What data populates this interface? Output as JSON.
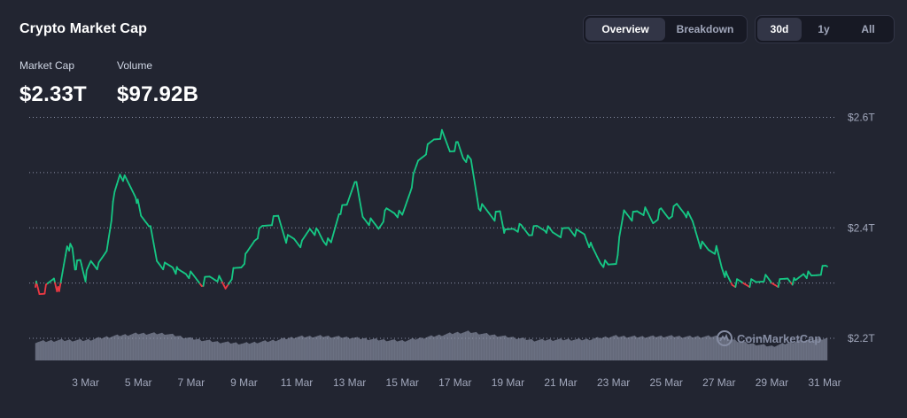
{
  "header": {
    "title": "Crypto Market Cap",
    "view_tabs": [
      {
        "label": "Overview",
        "active": true
      },
      {
        "label": "Breakdown",
        "active": false
      }
    ],
    "range_tabs": [
      {
        "label": "30d",
        "active": true
      },
      {
        "label": "1y",
        "active": false
      },
      {
        "label": "All",
        "active": false
      }
    ]
  },
  "stats": {
    "market_cap": {
      "label": "Market Cap",
      "value": "$2.33T"
    },
    "volume": {
      "label": "Volume",
      "value": "$97.92B"
    }
  },
  "watermark": {
    "text": "CoinMarketCap",
    "icon": "coinmarketcap-logo-icon"
  },
  "colors": {
    "background": "#222531",
    "line_up": "#16c784",
    "line_down": "#ea3943",
    "volume_bars": "#9399ad",
    "grid": "#8a90a6"
  },
  "chart_data": {
    "type": "line",
    "baseline": 2.3,
    "ylim": [
      2.16,
      2.62
    ],
    "y_ticks": [
      {
        "value": 2.6,
        "label": "$2.6T"
      },
      {
        "value": 2.4,
        "label": "$2.4T"
      },
      {
        "value": 2.2,
        "label": "$2.2T"
      }
    ],
    "y_grid_values": [
      2.6,
      2.5,
      2.4,
      2.3,
      2.2
    ],
    "x_ticks": [
      "3 Mar",
      "5 Mar",
      "7 Mar",
      "9 Mar",
      "11 Mar",
      "13 Mar",
      "15 Mar",
      "17 Mar",
      "19 Mar",
      "21 Mar",
      "23 Mar",
      "25 Mar",
      "27 Mar",
      "29 Mar",
      "31 Mar"
    ],
    "x_tick_days": [
      2,
      4,
      6,
      8,
      10,
      12,
      14,
      16,
      18,
      20,
      22,
      24,
      26,
      28,
      30
    ],
    "x_range_days": [
      0.1,
      30.1
    ],
    "grid": true,
    "legend": "none",
    "series": [
      {
        "x_days": [
          0.1,
          0.25,
          0.5,
          0.8,
          1.0,
          1.3,
          1.5,
          1.6,
          1.8,
          2.0,
          2.2,
          2.5,
          2.8,
          3.1,
          3.3,
          3.6,
          3.9,
          4.1,
          4.4,
          4.7,
          5.0,
          5.3,
          5.5,
          5.8,
          6.1,
          6.4,
          6.7,
          7.0,
          7.3,
          7.6,
          7.9,
          8.1,
          8.4,
          8.7,
          9.0,
          9.3,
          9.6,
          9.9,
          10.2,
          10.5,
          10.8,
          11.0,
          11.3,
          11.6,
          11.9,
          12.2,
          12.5,
          12.8,
          13.1,
          13.4,
          13.7,
          14.0,
          14.3,
          14.6,
          14.9,
          15.2,
          15.5,
          15.8,
          16.1,
          16.3,
          16.6,
          16.9,
          17.2,
          17.5,
          17.7,
          17.9,
          18.2,
          18.5,
          18.8,
          19.1,
          19.4,
          19.7,
          20.0,
          20.3,
          20.6,
          20.9,
          21.2,
          21.5,
          21.8,
          22.1,
          22.4,
          22.7,
          22.9,
          23.2,
          23.5,
          23.8,
          24.1,
          24.4,
          24.7,
          25.0,
          25.3,
          25.6,
          25.9,
          26.1,
          26.3,
          26.5,
          26.8,
          27.1,
          27.4,
          27.7,
          28.0,
          28.3,
          28.6,
          28.9,
          29.2,
          29.5,
          29.8,
          30.1
        ],
        "values": [
          2.3,
          2.28,
          2.29,
          2.31,
          2.28,
          2.37,
          2.36,
          2.33,
          2.34,
          2.31,
          2.34,
          2.33,
          2.36,
          2.46,
          2.5,
          2.48,
          2.46,
          2.42,
          2.41,
          2.34,
          2.33,
          2.33,
          2.32,
          2.32,
          2.31,
          2.3,
          2.31,
          2.31,
          2.29,
          2.32,
          2.33,
          2.35,
          2.38,
          2.4,
          2.41,
          2.42,
          2.38,
          2.38,
          2.37,
          2.4,
          2.39,
          2.38,
          2.37,
          2.43,
          2.44,
          2.49,
          2.42,
          2.41,
          2.4,
          2.43,
          2.43,
          2.42,
          2.47,
          2.52,
          2.54,
          2.56,
          2.57,
          2.54,
          2.55,
          2.53,
          2.52,
          2.44,
          2.43,
          2.42,
          2.43,
          2.39,
          2.4,
          2.4,
          2.39,
          2.4,
          2.4,
          2.39,
          2.39,
          2.4,
          2.39,
          2.39,
          2.36,
          2.34,
          2.33,
          2.34,
          2.43,
          2.42,
          2.43,
          2.43,
          2.41,
          2.43,
          2.42,
          2.44,
          2.43,
          2.41,
          2.37,
          2.36,
          2.36,
          2.33,
          2.31,
          2.3,
          2.3,
          2.3,
          2.3,
          2.31,
          2.3,
          2.3,
          2.31,
          2.3,
          2.32,
          2.31,
          2.32,
          2.33
        ]
      }
    ],
    "volume": {
      "x_days": [
        0.1,
        1.0,
        2.0,
        3.0,
        4.0,
        5.0,
        6.0,
        7.0,
        8.0,
        9.0,
        10.0,
        11.0,
        12.0,
        13.0,
        14.0,
        15.0,
        16.0,
        16.5,
        17.0,
        18.0,
        19.0,
        20.0,
        21.0,
        22.0,
        23.0,
        24.0,
        25.0,
        26.0,
        27.0,
        28.0,
        29.0,
        30.1
      ],
      "values": [
        0.55,
        0.6,
        0.6,
        0.72,
        0.8,
        0.8,
        0.65,
        0.55,
        0.5,
        0.58,
        0.7,
        0.72,
        0.68,
        0.62,
        0.58,
        0.7,
        0.82,
        0.85,
        0.8,
        0.7,
        0.6,
        0.62,
        0.62,
        0.72,
        0.7,
        0.72,
        0.7,
        0.72,
        0.52,
        0.42,
        0.58,
        0.65
      ]
    }
  }
}
